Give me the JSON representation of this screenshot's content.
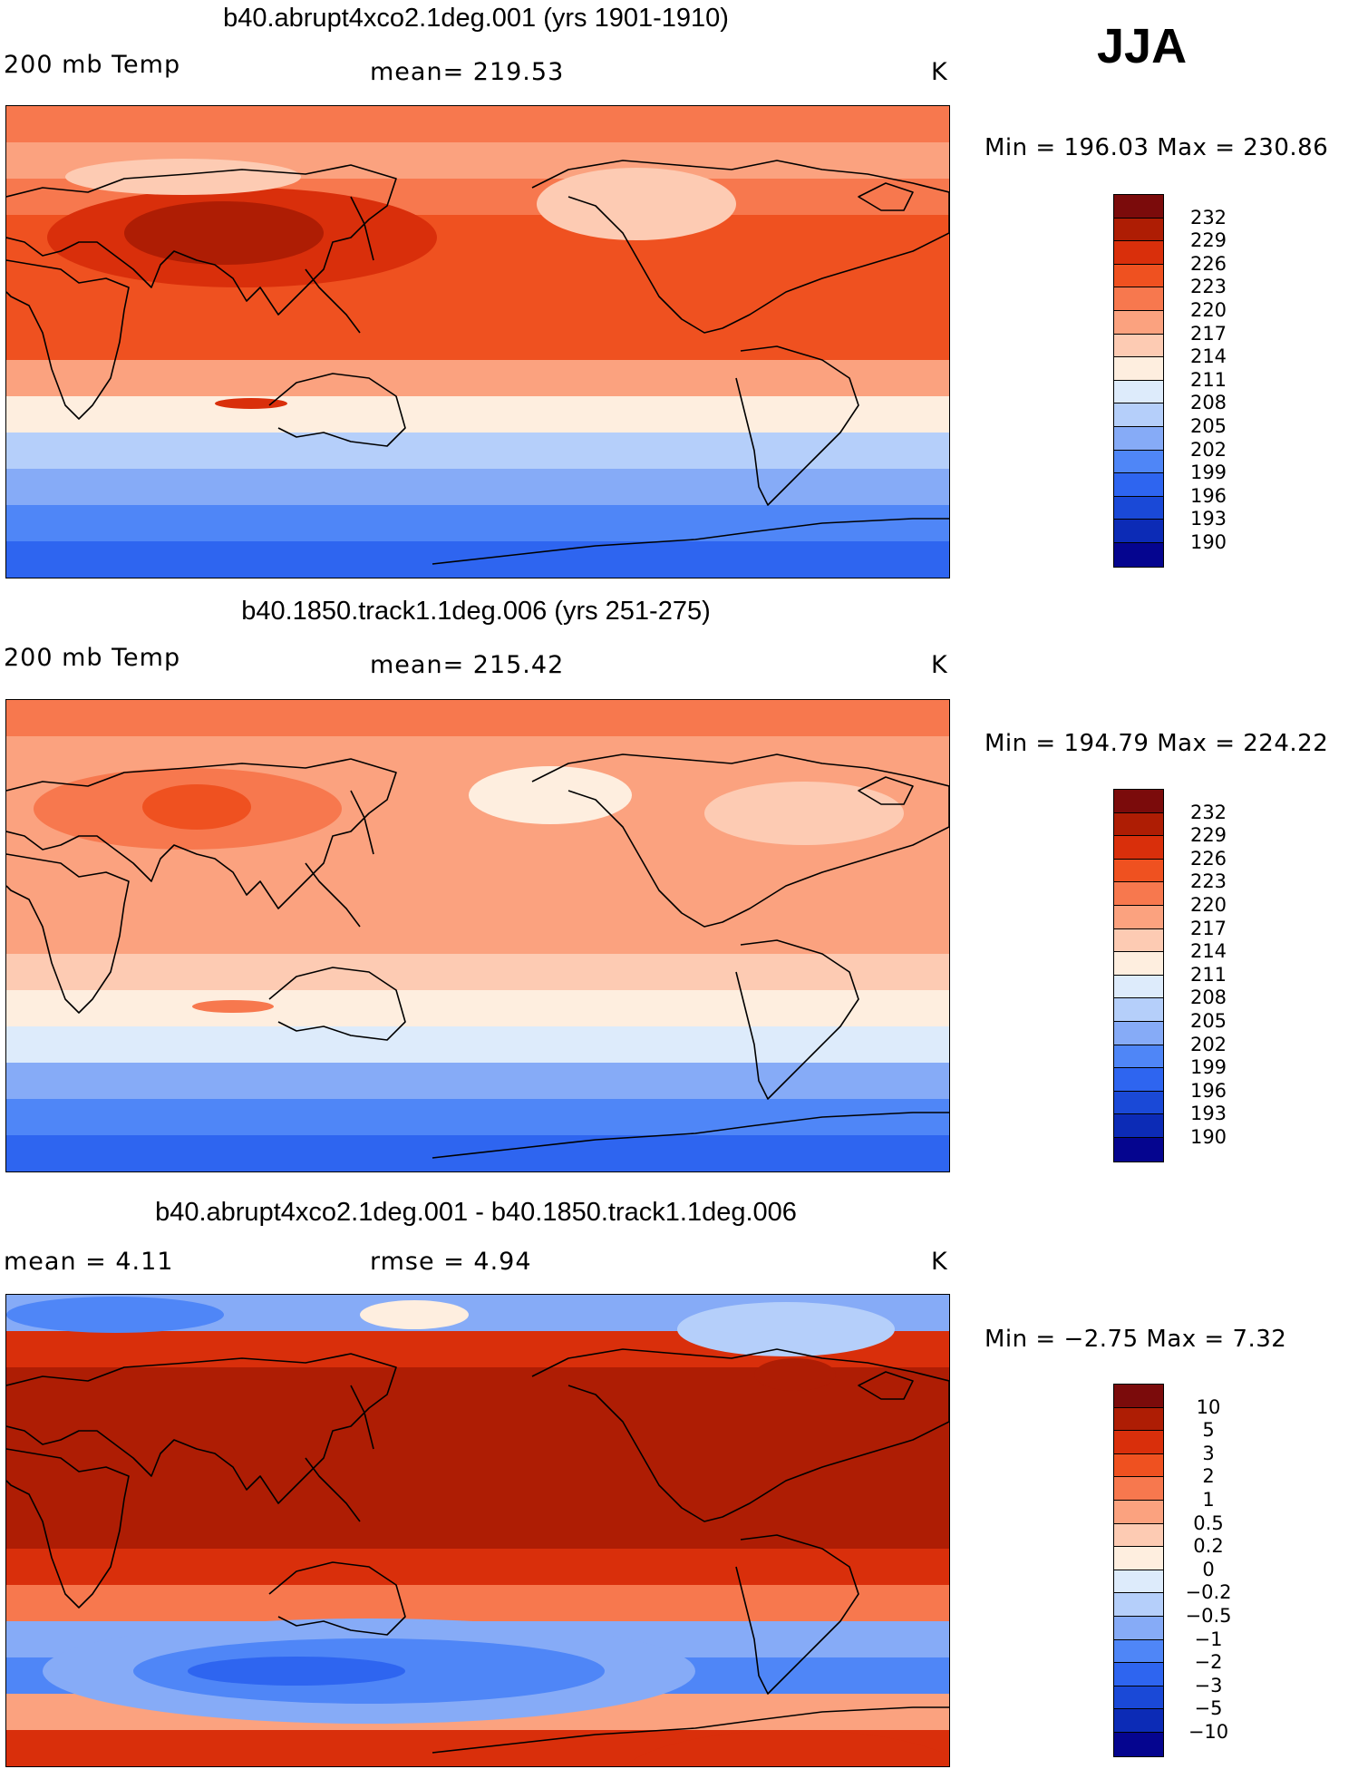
{
  "season": "JJA",
  "palettes": {
    "abs": [
      "#05058f",
      "#0c2bb6",
      "#1a49d7",
      "#2e65f0",
      "#4f86f7",
      "#86abf7",
      "#b5cffa",
      "#ddebfb",
      "#feeedf",
      "#fdcbb3",
      "#fba27f",
      "#f7784e",
      "#ef5120",
      "#d92f0b",
      "#ae1d04",
      "#7b0b0b"
    ],
    "diff": [
      "#05058f",
      "#0c2bb6",
      "#1a49d7",
      "#2e65f0",
      "#4f86f7",
      "#86abf7",
      "#b5cffa",
      "#ddebfb",
      "#feeedf",
      "#fdcbb3",
      "#fba27f",
      "#f7784e",
      "#ef5120",
      "#d92f0b",
      "#ae1d04",
      "#7b0b0b"
    ]
  },
  "panels": [
    {
      "id": "p1",
      "title": "b40.abrupt4xco2.1deg.001 (yrs 1901-1910)",
      "variable": "200 mb Temp",
      "stat": "mean=  219.53",
      "stat2": "",
      "units": "K",
      "minmax": "Min = 196.03 Max = 230.86",
      "levels": [
        "232",
        "229",
        "226",
        "223",
        "220",
        "217",
        "214",
        "211",
        "208",
        "205",
        "202",
        "199",
        "196",
        "193",
        "190"
      ],
      "colors": [
        "#7b0b0b",
        "#ae1d04",
        "#d92f0b",
        "#ef5120",
        "#f7784e",
        "#fba27f",
        "#fdcbb3",
        "#feeedf",
        "#ddebfb",
        "#b5cffa",
        "#86abf7",
        "#4f86f7",
        "#2e65f0",
        "#1a49d7",
        "#0c2bb6",
        "#05058f"
      ],
      "bands": [
        "#f7784e",
        "#fba27f",
        "#f7784e",
        "#ef5120",
        "#ef5120",
        "#ef5120",
        "#ef5120",
        "#fba27f",
        "#feeedf",
        "#b5cffa",
        "#86abf7",
        "#4f86f7",
        "#2e65f0"
      ]
    },
    {
      "id": "p2",
      "title": "b40.1850.track1.1deg.006 (yrs 251-275)",
      "variable": "200 mb Temp",
      "stat": "mean=  215.42",
      "stat2": "",
      "units": "K",
      "minmax": "Min = 194.79 Max = 224.22",
      "levels": [
        "232",
        "229",
        "226",
        "223",
        "220",
        "217",
        "214",
        "211",
        "208",
        "205",
        "202",
        "199",
        "196",
        "193",
        "190"
      ],
      "colors": [
        "#7b0b0b",
        "#ae1d04",
        "#d92f0b",
        "#ef5120",
        "#f7784e",
        "#fba27f",
        "#fdcbb3",
        "#feeedf",
        "#ddebfb",
        "#b5cffa",
        "#86abf7",
        "#4f86f7",
        "#2e65f0",
        "#1a49d7",
        "#0c2bb6",
        "#05058f"
      ],
      "bands": [
        "#f7784e",
        "#fba27f",
        "#fba27f",
        "#fba27f",
        "#fba27f",
        "#fba27f",
        "#fba27f",
        "#fdcbb3",
        "#feeedf",
        "#ddebfb",
        "#86abf7",
        "#4f86f7",
        "#2e65f0"
      ]
    },
    {
      "id": "p3",
      "title": "b40.abrupt4xco2.1deg.001 - b40.1850.track1.1deg.006",
      "variable": "mean =    4.11",
      "stat": "rmse =    4.94",
      "stat2": "",
      "units": "K",
      "minmax": "Min =   −2.75 Max =    7.32",
      "levels": [
        "10",
        "5",
        "3",
        "2",
        "1",
        "0.5",
        "0.2",
        "0",
        "−0.2",
        "−0.5",
        "−1",
        "−2",
        "−3",
        "−5",
        "−10"
      ],
      "colors": [
        "#7b0b0b",
        "#ae1d04",
        "#d92f0b",
        "#ef5120",
        "#f7784e",
        "#fba27f",
        "#fdcbb3",
        "#feeedf",
        "#ddebfb",
        "#b5cffa",
        "#86abf7",
        "#4f86f7",
        "#2e65f0",
        "#1a49d7",
        "#0c2bb6",
        "#05058f"
      ],
      "bands": [
        "#86abf7",
        "#d92f0b",
        "#ae1d04",
        "#ae1d04",
        "#ae1d04",
        "#ae1d04",
        "#ae1d04",
        "#d92f0b",
        "#f7784e",
        "#86abf7",
        "#4f86f7",
        "#fba27f",
        "#d92f0b"
      ]
    }
  ]
}
